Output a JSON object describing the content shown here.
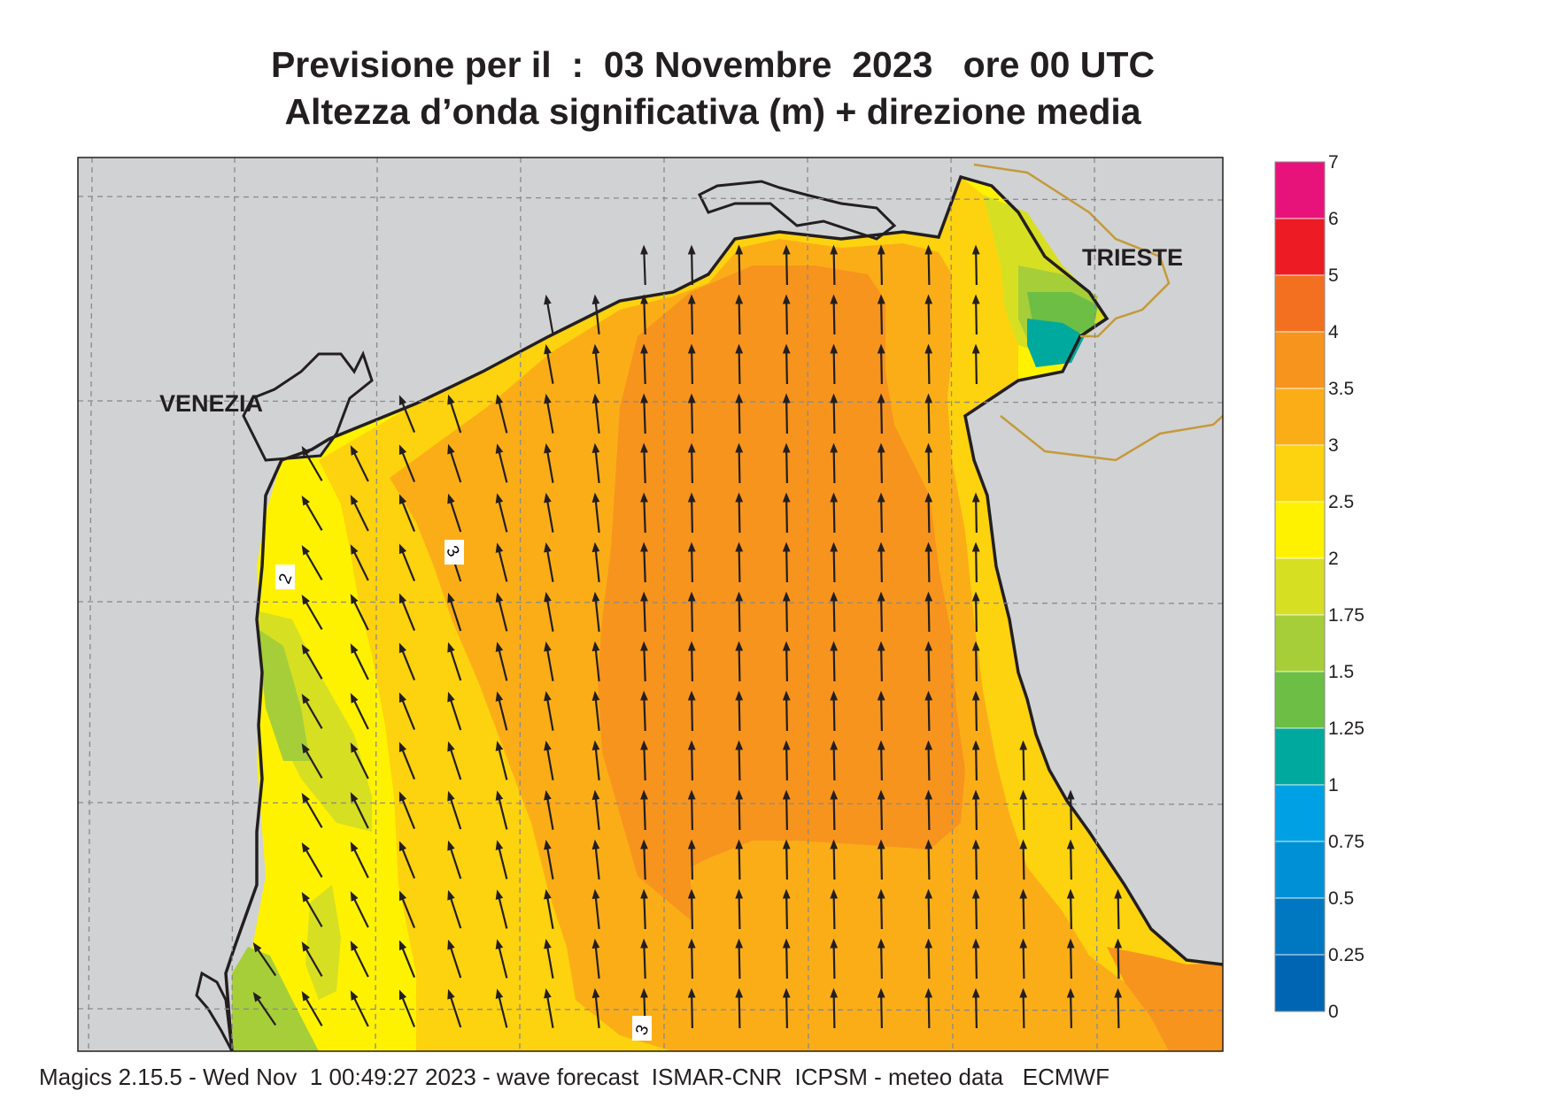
{
  "title": {
    "line1": "Previsione per il  :  03 Novembre  2023   ore 00 UTC",
    "line2": "Altezza d’onda significativa (m) + direzione media"
  },
  "places": [
    {
      "name": "VENEZIA"
    },
    {
      "name": "TRIESTE"
    }
  ],
  "contour_labels": [
    "3",
    "2",
    "3"
  ],
  "legend": {
    "levels": [
      {
        "label": "7",
        "color": "#e8137a"
      },
      {
        "label": "6",
        "color": "#ed1c24"
      },
      {
        "label": "5",
        "color": "#f37021"
      },
      {
        "label": "4",
        "color": "#f7941d"
      },
      {
        "label": "3.5",
        "color": "#fbad18"
      },
      {
        "label": "3",
        "color": "#fdd20e"
      },
      {
        "label": "2.5",
        "color": "#fff200"
      },
      {
        "label": "2",
        "color": "#d7df23"
      },
      {
        "label": "1.75",
        "color": "#a6ce39"
      },
      {
        "label": "1.5",
        "color": "#6cbe45"
      },
      {
        "label": "1.25",
        "color": "#00a99d"
      },
      {
        "label": "1",
        "color": "#00a0e4"
      },
      {
        "label": "0.75",
        "color": "#0090d6"
      },
      {
        "label": "0.5",
        "color": "#0078c1"
      },
      {
        "label": "0.25",
        "color": "#0066b3"
      },
      {
        "label": "0",
        "color": "#0066b3"
      }
    ]
  },
  "mean_direction": "NNW",
  "footer": "Magics 2.15.5 - Wed Nov  1 00:49:27 2023 - wave forecast  ISMAR-CNR  ICPSM - meteo data   ECMWF"
}
